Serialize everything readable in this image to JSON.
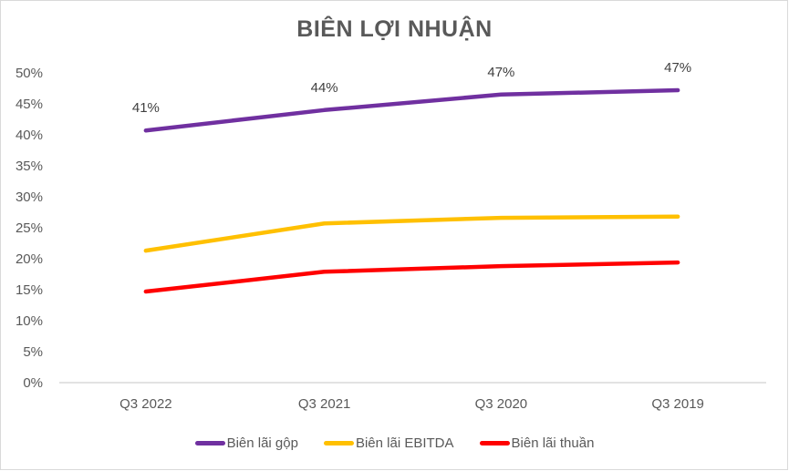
{
  "chart_data": {
    "type": "line",
    "title": "BIÊN LỢI NHUẬN",
    "xlabel": "",
    "ylabel": "",
    "categories": [
      "Q3 2022",
      "Q3 2021",
      "Q3 2020",
      "Q3 2019"
    ],
    "ylim": [
      0,
      0.5
    ],
    "yticks": [
      0,
      0.05,
      0.1,
      0.15,
      0.2,
      0.25,
      0.3,
      0.35,
      0.4,
      0.45,
      0.5
    ],
    "ytick_labels": [
      "0%",
      "5%",
      "10%",
      "15%",
      "20%",
      "25%",
      "30%",
      "35%",
      "40%",
      "45%",
      "50%"
    ],
    "grid": false,
    "legend_position": "bottom",
    "series": [
      {
        "name": "Biên lãi gộp",
        "color": "#7030a0",
        "values": [
          0.407,
          0.44,
          0.465,
          0.472
        ],
        "data_labels": [
          "41%",
          "44%",
          "47%",
          "47%"
        ]
      },
      {
        "name": "Biên lãi EBITDA",
        "color": "#ffc000",
        "values": [
          0.213,
          0.257,
          0.266,
          0.268
        ],
        "data_labels": []
      },
      {
        "name": "Biên lãi thuần",
        "color": "#ff0000",
        "values": [
          0.147,
          0.179,
          0.188,
          0.194
        ],
        "data_labels": []
      }
    ]
  }
}
